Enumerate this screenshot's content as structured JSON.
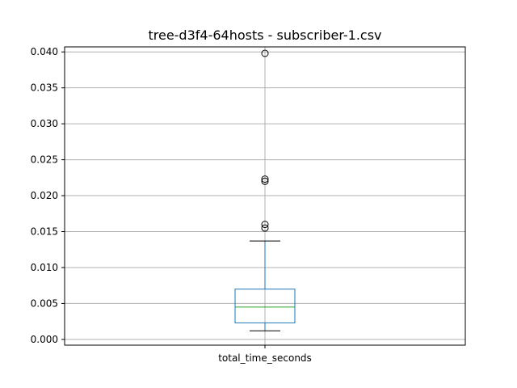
{
  "chart_data": {
    "type": "box",
    "title": "tree-d3f4-64hosts - subscriber-1.csv",
    "xlabel": "",
    "ylabel": "",
    "categories": [
      "total_time_seconds"
    ],
    "ylim": [
      -0.0008,
      0.0407
    ],
    "yticks": [
      0.0,
      0.005,
      0.01,
      0.015,
      0.02,
      0.025,
      0.03,
      0.035,
      0.04
    ],
    "ytick_labels": [
      "0.000",
      "0.005",
      "0.010",
      "0.015",
      "0.020",
      "0.025",
      "0.030",
      "0.035",
      "0.040"
    ],
    "grid": true,
    "boxes": [
      {
        "category": "total_time_seconds",
        "whisker_low": 0.0012,
        "q1": 0.0023,
        "median": 0.0045,
        "q3": 0.007,
        "whisker_high": 0.0137,
        "outliers": [
          0.0155,
          0.016,
          0.022,
          0.0223,
          0.0398
        ]
      }
    ],
    "colors": {
      "box": "#1f77b4",
      "median": "#2ca02c",
      "whisker": "#1f77b4",
      "cap": "#000000",
      "outlier": "#000000",
      "grid": "#b0b0b0"
    }
  }
}
